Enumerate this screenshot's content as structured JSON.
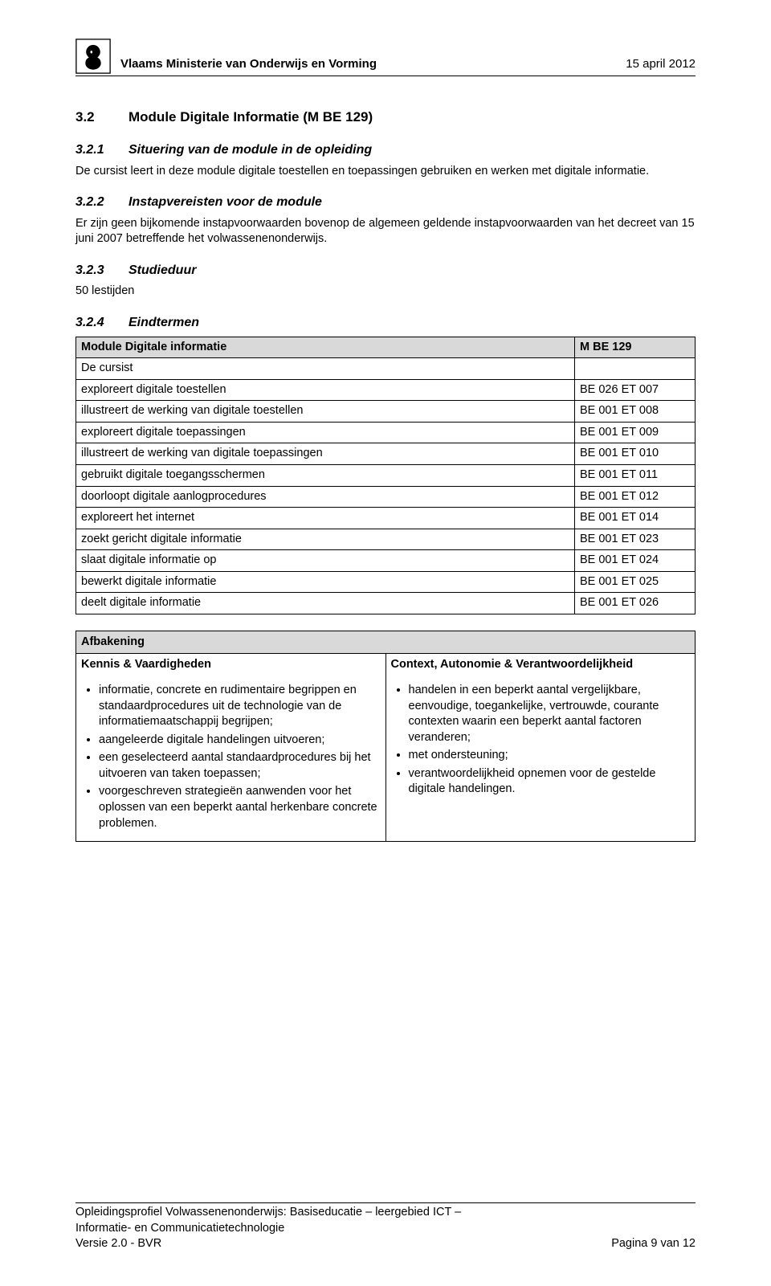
{
  "header": {
    "ministry": "Vlaams Ministerie van Onderwijs en Vorming",
    "date": "15 april 2012"
  },
  "section": {
    "num": "3.2",
    "title": "Module Digitale Informatie (M BE 129)"
  },
  "sub1": {
    "num": "3.2.1",
    "title": "Situering van de module in de opleiding",
    "text": "De cursist leert in deze module digitale toestellen en toepassingen gebruiken en werken met digitale informatie."
  },
  "sub2": {
    "num": "3.2.2",
    "title": "Instapvereisten voor de module",
    "text": "Er zijn geen bijkomende instapvoorwaarden bovenop de algemeen geldende instapvoorwaarden van het decreet van 15 juni 2007 betreffende het volwassenenonderwijs."
  },
  "sub3": {
    "num": "3.2.3",
    "title": "Studieduur",
    "text": "50 lestijden"
  },
  "sub4": {
    "num": "3.2.4",
    "title": "Eindtermen"
  },
  "module_table": {
    "header_left": "Module Digitale informatie",
    "header_right": "M BE 129",
    "subheader": "De cursist",
    "rows": [
      {
        "text": "exploreert digitale toestellen",
        "code": "BE 026 ET 007"
      },
      {
        "text": "illustreert de werking van digitale toestellen",
        "code": "BE 001 ET 008"
      },
      {
        "text": "exploreert digitale toepassingen",
        "code": "BE 001 ET 009"
      },
      {
        "text": "illustreert de werking van digitale toepassingen",
        "code": "BE 001 ET 010"
      },
      {
        "text": "gebruikt digitale toegangsschermen",
        "code": "BE 001 ET 011"
      },
      {
        "text": "doorloopt digitale aanlogprocedures",
        "code": "BE 001 ET 012"
      },
      {
        "text": "exploreert het internet",
        "code": "BE 001 ET 014"
      },
      {
        "text": "zoekt gericht digitale informatie",
        "code": "BE 001 ET 023"
      },
      {
        "text": "slaat digitale informatie op",
        "code": "BE 001 ET 024"
      },
      {
        "text": "bewerkt digitale informatie",
        "code": "BE 001 ET 025"
      },
      {
        "text": "deelt digitale informatie",
        "code": "BE 001 ET 026"
      }
    ]
  },
  "afbakening": {
    "title": "Afbakening",
    "left_header": "Kennis & Vaardigheden",
    "right_header": "Context, Autonomie & Verantwoordelijkheid",
    "left_items": [
      "informatie, concrete en rudimentaire begrippen en standaardprocedures uit de technologie van de informatiemaatschappij begrijpen;",
      "aangeleerde digitale handelingen uitvoeren;",
      "een geselecteerd aantal standaardprocedures bij het uitvoeren van taken toepassen;",
      "voorgeschreven strategieën aanwenden voor het oplossen van een beperkt aantal herkenbare concrete problemen."
    ],
    "right_items": [
      "handelen in een beperkt aantal vergelijkbare, eenvoudige, toegankelijke, vertrouwde, courante contexten waarin een beperkt aantal factoren veranderen;",
      "met ondersteuning;",
      "verantwoordelijkheid opnemen voor de gestelde digitale handelingen."
    ]
  },
  "footer": {
    "line1": "Opleidingsprofiel Volwassenenonderwijs: Basiseducatie – leergebied ICT –",
    "line2": "Informatie- en Communicatietechnologie",
    "version": "Versie 2.0 - BVR",
    "page": "Pagina 9 van 12"
  }
}
